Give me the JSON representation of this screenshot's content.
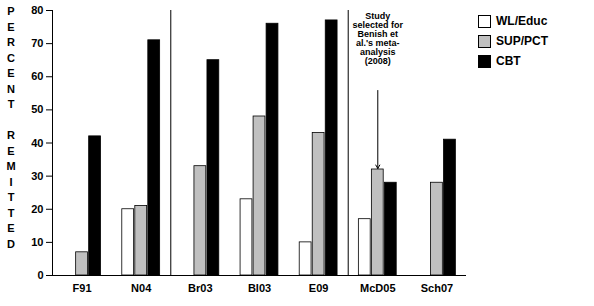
{
  "chart_data": {
    "type": "bar",
    "y_label": "PERCENT REMITTED",
    "categories": [
      "F91",
      "N04",
      "Br03",
      "Bl03",
      "E09",
      "McD05",
      "Sch07"
    ],
    "series": [
      {
        "name": "WL/Educ",
        "color": "#ffffff",
        "values": [
          null,
          20,
          null,
          23,
          10,
          17,
          null
        ]
      },
      {
        "name": "SUP/PCT",
        "color": "#c0c0c0",
        "values": [
          7,
          21,
          33,
          48,
          43,
          32,
          28
        ]
      },
      {
        "name": "CBT",
        "color": "#000000",
        "values": [
          42,
          71,
          65,
          76,
          77,
          28,
          41
        ]
      }
    ],
    "ylim": [
      0,
      80
    ],
    "yticks": [
      0,
      10,
      20,
      30,
      40,
      50,
      60,
      70,
      80
    ],
    "grid": false,
    "legend": "top-right",
    "dividers": [
      "Br03",
      "McD05"
    ],
    "annotations": [
      {
        "text": "Study selected for Benish et al.'s meta-analysis (2008)",
        "category": "McD05",
        "series": "SUP/PCT"
      }
    ]
  }
}
